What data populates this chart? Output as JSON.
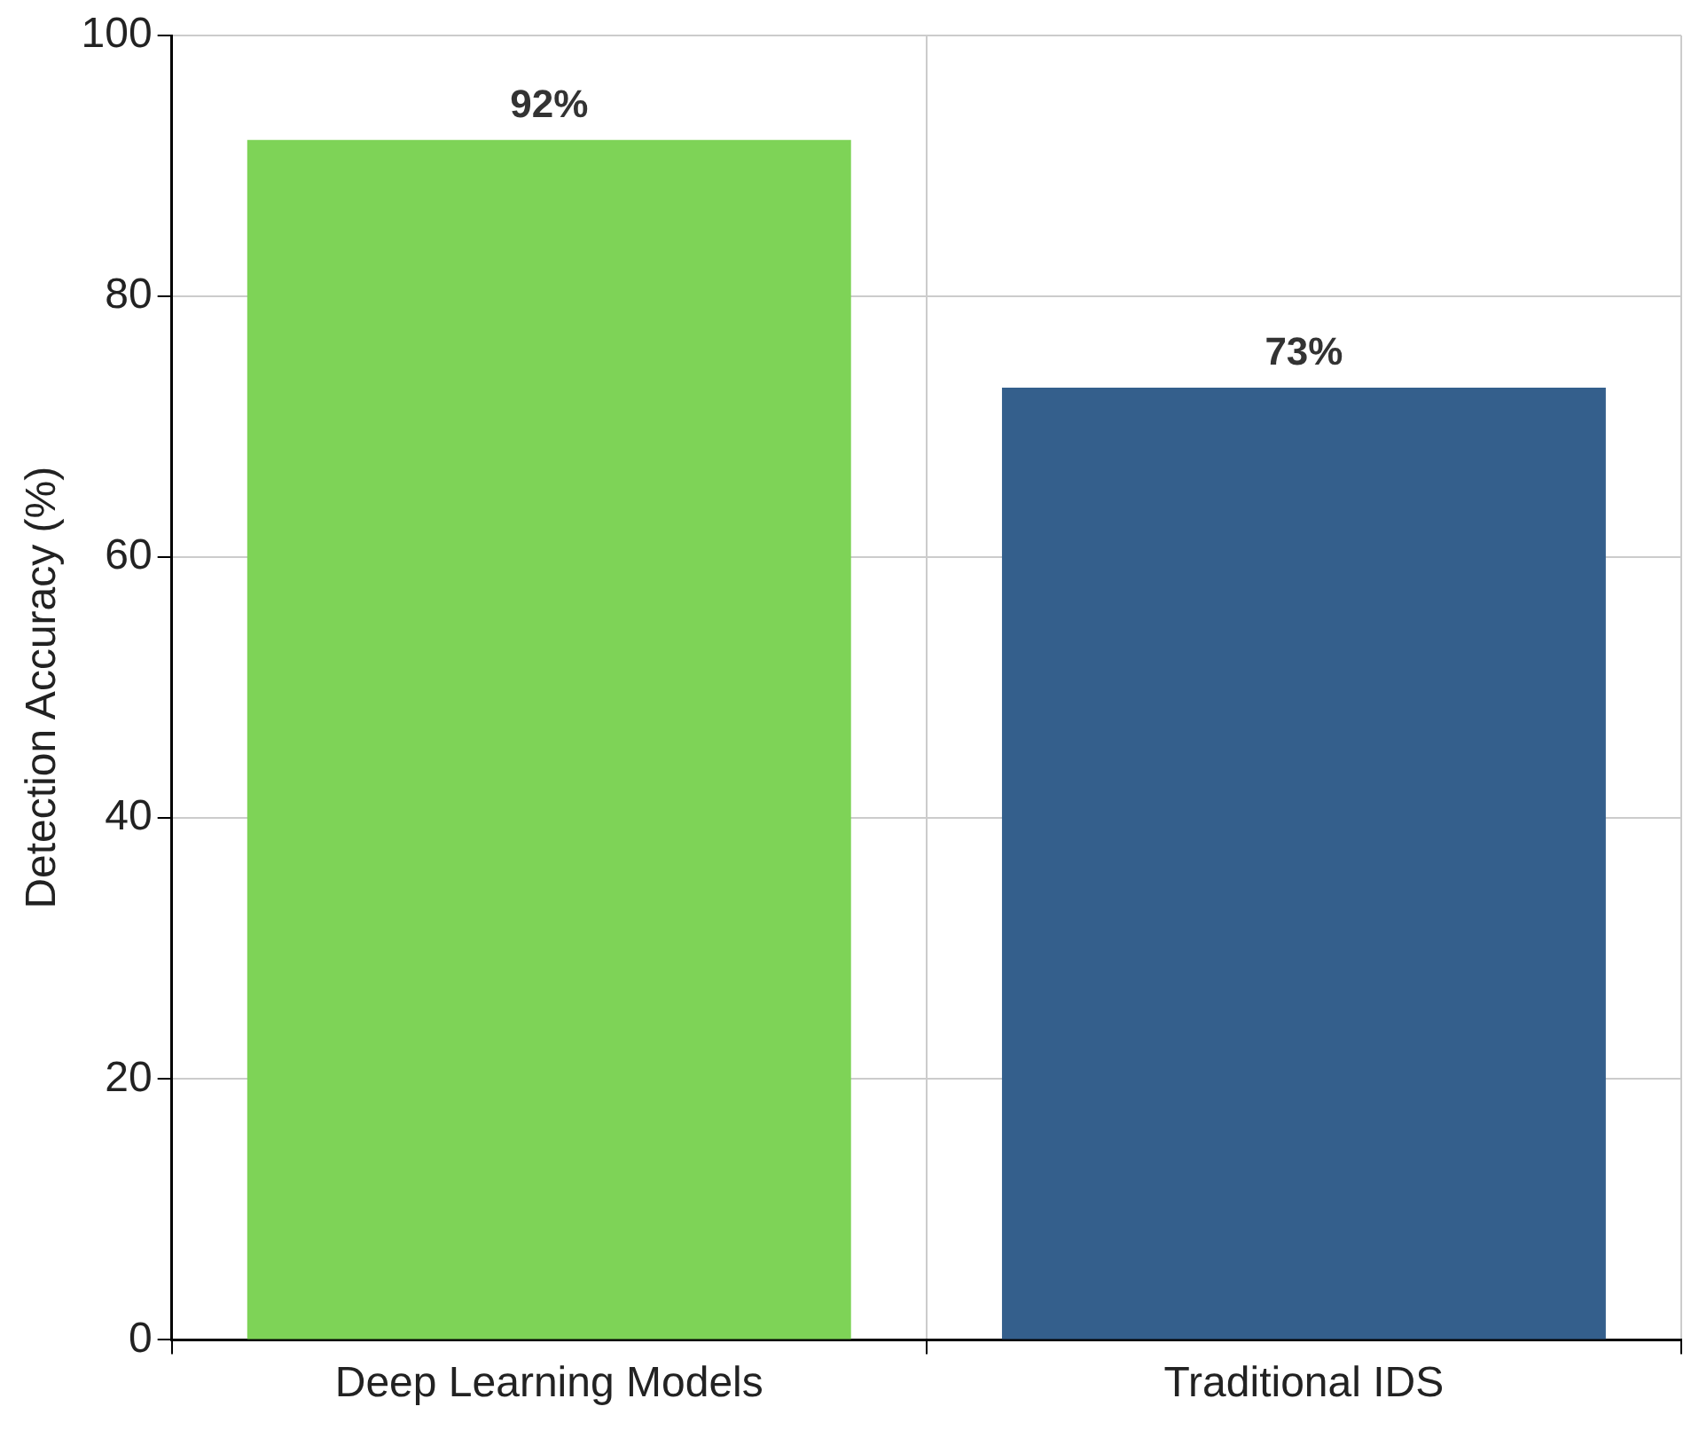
{
  "chart_data": {
    "type": "bar",
    "ylabel": "Detection Accuracy (%)",
    "categories": [
      "Deep Learning Models",
      "Traditional IDS"
    ],
    "values": [
      92,
      73
    ],
    "colors": [
      "#7ed357",
      "#345f8c"
    ],
    "value_labels": [
      "92%",
      "73%"
    ],
    "ylim": [
      0,
      100
    ],
    "yticks": [
      0,
      20,
      40,
      60,
      80,
      100
    ],
    "grid": true,
    "legend": false
  }
}
